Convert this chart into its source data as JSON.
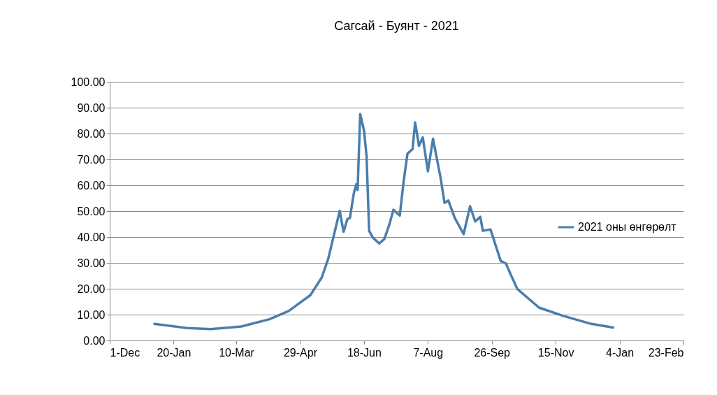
{
  "chart_data": {
    "type": "line",
    "title": "Сагсай - Буянт - 2021",
    "x": [
      "2021-01-05",
      "2021-01-31",
      "2021-02-18",
      "2021-03-14",
      "2021-04-05",
      "2021-04-20",
      "2021-05-07",
      "2021-05-16",
      "2021-05-21",
      "2021-05-30",
      "2021-06-02",
      "2021-06-05",
      "2021-06-07",
      "2021-06-10",
      "2021-06-12",
      "2021-06-13",
      "2021-06-15",
      "2021-06-18",
      "2021-06-20",
      "2021-06-22",
      "2021-06-25",
      "2021-06-30",
      "2021-07-04",
      "2021-07-08",
      "2021-07-11",
      "2021-07-16",
      "2021-07-19",
      "2021-07-22",
      "2021-07-26",
      "2021-07-28",
      "2021-07-31",
      "2021-08-03",
      "2021-08-07",
      "2021-08-11",
      "2021-08-17",
      "2021-08-20",
      "2021-08-23",
      "2021-08-28",
      "2021-09-04",
      "2021-09-09",
      "2021-09-13",
      "2021-09-17",
      "2021-09-19",
      "2021-09-25",
      "2021-10-03",
      "2021-10-07",
      "2021-10-11",
      "2021-10-16",
      "2021-11-02",
      "2021-11-21",
      "2021-12-13",
      "2021-12-30"
    ],
    "series": [
      {
        "name": "2021 оны өнгөрөлт",
        "color": "#4a7ead",
        "values": [
          6.4,
          4.8,
          4.4,
          5.4,
          8.2,
          11.4,
          17.5,
          24.4,
          31.6,
          50.1,
          42,
          46.9,
          47.4,
          56.8,
          60.4,
          58.2,
          87.5,
          81.2,
          71.3,
          42.4,
          39.7,
          37.5,
          39.3,
          45.1,
          50.5,
          48.3,
          61.4,
          72.2,
          74,
          84.3,
          75.3,
          78.5,
          65.4,
          78,
          62.7,
          53.2,
          54.1,
          47.4,
          41.1,
          51.9,
          46,
          47.8,
          42.4,
          42.9,
          30.7,
          29.8,
          25.3,
          19.9,
          12.7,
          9.5,
          6.4,
          5.0
        ]
      }
    ],
    "xlim": [
      "2020-12-01",
      "2022-02-23"
    ],
    "xticks": [
      {
        "value": "2020-12-01",
        "label": "1-Dec"
      },
      {
        "value": "2021-01-20",
        "label": "20-Jan"
      },
      {
        "value": "2021-03-10",
        "label": "10-Mar"
      },
      {
        "value": "2021-04-29",
        "label": "29-Apr"
      },
      {
        "value": "2021-06-18",
        "label": "18-Jun"
      },
      {
        "value": "2021-08-07",
        "label": "7-Aug"
      },
      {
        "value": "2021-09-26",
        "label": "26-Sep"
      },
      {
        "value": "2021-11-15",
        "label": "15-Nov"
      },
      {
        "value": "2022-01-04",
        "label": "4-Jan"
      },
      {
        "value": "2022-02-23",
        "label": "23-Feb"
      }
    ],
    "ylim": [
      0,
      100
    ],
    "yticks": [
      {
        "value": 0,
        "label": "0.00"
      },
      {
        "value": 10,
        "label": "10.00"
      },
      {
        "value": 20,
        "label": "20.00"
      },
      {
        "value": 30,
        "label": "30.00"
      },
      {
        "value": 40,
        "label": "40.00"
      },
      {
        "value": 50,
        "label": "50.00"
      },
      {
        "value": 60,
        "label": "60.00"
      },
      {
        "value": 70,
        "label": "70.00"
      },
      {
        "value": 80,
        "label": "80.00"
      },
      {
        "value": 90,
        "label": "90.00"
      },
      {
        "value": 100,
        "label": "100.00"
      }
    ],
    "grid": "y",
    "legend": "right",
    "line_style": "solid",
    "marker": "none"
  }
}
